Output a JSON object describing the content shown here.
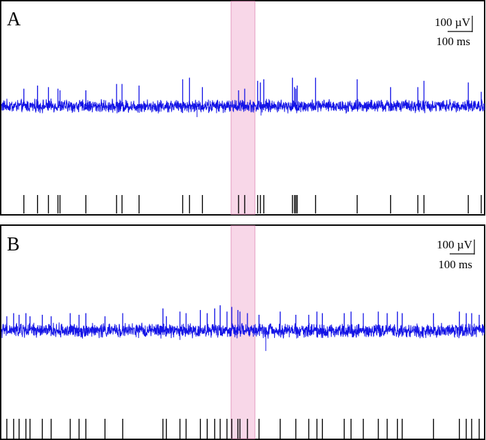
{
  "chart_data": [
    {
      "type": "line",
      "panel_label": "A",
      "scale_bar": {
        "amplitude_label": "100 µV",
        "time_label": "100 ms"
      },
      "series": [
        {
          "color": "#1414e6",
          "noise_amplitude_uV": 20,
          "baseline_uV": 0,
          "spike_times": [
            33,
            53,
            69,
            83,
            86,
            124,
            169,
            177,
            202,
            266,
            276,
            295,
            348,
            357,
            376,
            380,
            385,
            427,
            430,
            432,
            434,
            461,
            522,
            571,
            611,
            620,
            685,
            704
          ],
          "spike_amplitudes": [
            55,
            65,
            60,
            55,
            50,
            50,
            70,
            70,
            65,
            85,
            90,
            60,
            50,
            55,
            80,
            75,
            85,
            90,
            60,
            55,
            65,
            90,
            85,
            60,
            60,
            80,
            75,
            45
          ],
          "negative_deflections": [
            {
              "t": 287,
              "amp": -35
            },
            {
              "t": 381,
              "amp": -30
            }
          ]
        }
      ],
      "event_raster": [
        33,
        53,
        69,
        83,
        86,
        124,
        169,
        177,
        202,
        266,
        276,
        295,
        348,
        357,
        376,
        380,
        385,
        427,
        430,
        432,
        434,
        461,
        522,
        571,
        611,
        620,
        685,
        704
      ],
      "highlight_window": {
        "x_range": [
          337,
          372
        ],
        "color": "#f3b6d6"
      },
      "x_range": [
        0,
        709
      ],
      "y_range": [
        -155,
        155
      ],
      "grid": false
    },
    {
      "type": "line",
      "panel_label": "B",
      "scale_bar": {
        "amplitude_label": "100 µV",
        "time_label": "100 ms"
      },
      "series": [
        {
          "color": "#1414e6",
          "noise_amplitude_uV": 22,
          "baseline_uV": 0,
          "spike_times": [
            8,
            18,
            26,
            36,
            42,
            60,
            73,
            101,
            114,
            124,
            152,
            178,
            237,
            242,
            262,
            271,
            292,
            302,
            313,
            321,
            331,
            338,
            347,
            350,
            361,
            378,
            409,
            432,
            451,
            463,
            471,
            503,
            513,
            531,
            553,
            566,
            581,
            588,
            634,
            672,
            682,
            690,
            701
          ],
          "spike_amplitudes": [
            45,
            55,
            50,
            55,
            45,
            50,
            45,
            55,
            50,
            55,
            45,
            55,
            70,
            45,
            60,
            55,
            65,
            55,
            70,
            80,
            60,
            75,
            65,
            60,
            55,
            50,
            60,
            50,
            50,
            60,
            55,
            55,
            60,
            55,
            60,
            55,
            60,
            55,
            55,
            60,
            55,
            55,
            50
          ],
          "negative_deflections": [
            {
              "t": 262,
              "amp": -30
            },
            {
              "t": 388,
              "amp": -65
            }
          ]
        }
      ],
      "event_raster": [
        8,
        18,
        26,
        36,
        42,
        60,
        73,
        101,
        114,
        124,
        152,
        178,
        237,
        242,
        262,
        271,
        292,
        302,
        313,
        321,
        331,
        338,
        347,
        350,
        361,
        378,
        409,
        432,
        451,
        463,
        471,
        503,
        513,
        531,
        553,
        566,
        581,
        588,
        634,
        672,
        682,
        690,
        701
      ],
      "highlight_window": {
        "x_range": [
          337,
          372
        ],
        "color": "#f3b6d6"
      },
      "x_range": [
        0,
        709
      ],
      "y_range": [
        -155,
        155
      ],
      "grid": false
    }
  ]
}
